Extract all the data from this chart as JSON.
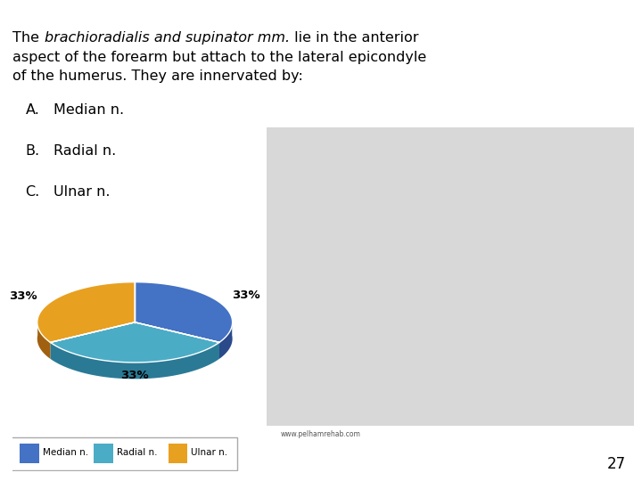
{
  "line1_pre": "The ",
  "line1_italic": "brachioradialis and supinator mm.",
  "line1_post": " lie in the anterior",
  "line2": "aspect of the forearm but attach to the lateral epicondyle",
  "line3": "of the humerus. They are innervated by:",
  "options": [
    {
      "letter": "A.",
      "text": "  Median n."
    },
    {
      "letter": "B.",
      "text": "  Radial n."
    },
    {
      "letter": "C.",
      "text": "  Ulnar n."
    }
  ],
  "pie_values": [
    33.33,
    33.33,
    33.34
  ],
  "pie_labels": [
    "33%",
    "33%",
    "33%"
  ],
  "pie_colors_top": [
    "#4472c4",
    "#4bacc6",
    "#e8a020"
  ],
  "pie_colors_side": [
    "#2a4a8a",
    "#2a7a96",
    "#a06010"
  ],
  "legend_labels": [
    "Median n.",
    "Radial n.",
    "Ulnar n."
  ],
  "legend_colors": [
    "#4472c4",
    "#4bacc6",
    "#e8a020"
  ],
  "page_number": "27",
  "background_color": "#ffffff",
  "text_color": "#000000",
  "watermark": "www.pelhamrehab.com",
  "title_fontsize": 11.5,
  "options_fontsize": 11.5,
  "legend_fontsize": 7.5
}
